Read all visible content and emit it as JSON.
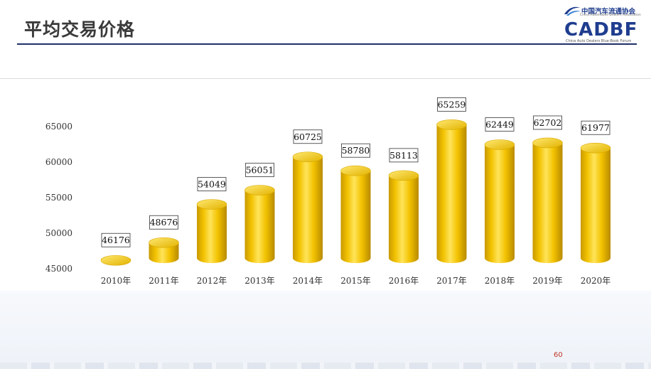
{
  "header": {
    "title": "平均交易价格"
  },
  "logo": {
    "cn_name": "中国汽车流通协会",
    "en_name": "China Automobile Dealers Association",
    "mark": "CADBF",
    "sub": "China Auto Dealers Blue-Book Forum"
  },
  "page_number": "60",
  "chart_data": {
    "type": "bar",
    "title": "",
    "xlabel": "",
    "ylabel": "",
    "categories": [
      "2010年",
      "2011年",
      "2012年",
      "2013年",
      "2014年",
      "2015年",
      "2016年",
      "2017年",
      "2018年",
      "2019年",
      "2020年"
    ],
    "values": [
      46176,
      48676,
      54049,
      56051,
      60725,
      58780,
      58113,
      65259,
      62449,
      62702,
      61977
    ],
    "data_labels": [
      "46176",
      "48676",
      "54049",
      "56051",
      "60725",
      "58780",
      "58113",
      "65259",
      "62449",
      "62702",
      "61977"
    ],
    "yticks": [
      "45000",
      "50000",
      "55000",
      "60000",
      "65000"
    ],
    "ylim": [
      45000,
      65000
    ],
    "grid": false,
    "legend": "none",
    "bar_style": "3d-cylinder",
    "colors": {
      "bar": "#f2c200",
      "bar_dark": "#c99a00",
      "bar_light": "#fff1a0"
    }
  }
}
